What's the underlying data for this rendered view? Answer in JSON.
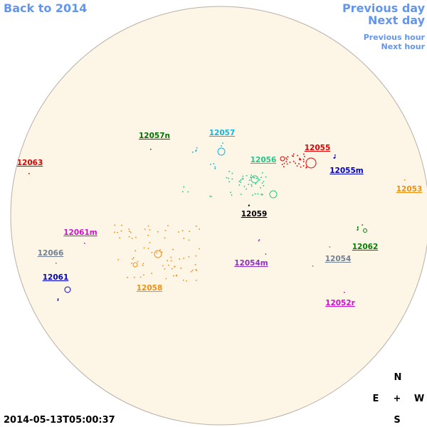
{
  "nav": {
    "back": "Back to 2014",
    "previous_day": "Previous day",
    "next_day": "Next day",
    "previous_hour": "Previous hour",
    "next_hour": "Next hour"
  },
  "timestamp": "2014-05-13T05:00:37",
  "compass": {
    "north": "N",
    "east": "E",
    "center": "+",
    "west": "W",
    "south": "S"
  },
  "regions": [
    {
      "label": "12063",
      "color": "#e00000"
    },
    {
      "label": "12057n",
      "color": "#007000"
    },
    {
      "label": "12057",
      "color": "#10b8e0"
    },
    {
      "label": "12056",
      "color": "#20c888"
    },
    {
      "label": "12055",
      "color": "#e00000"
    },
    {
      "label": "12055m",
      "color": "#0000c0"
    },
    {
      "label": "12053",
      "color": "#f09010"
    },
    {
      "label": "12059",
      "color": "#000000"
    },
    {
      "label": "12061m",
      "color": "#d010d0"
    },
    {
      "label": "12066",
      "color": "#708090"
    },
    {
      "label": "12061",
      "color": "#0000c0"
    },
    {
      "label": "12058",
      "color": "#f09010"
    },
    {
      "label": "12054m",
      "color": "#9030c0"
    },
    {
      "label": "12054",
      "color": "#708090"
    },
    {
      "label": "12062",
      "color": "#008000"
    },
    {
      "label": "12052r",
      "color": "#d010d0"
    }
  ]
}
